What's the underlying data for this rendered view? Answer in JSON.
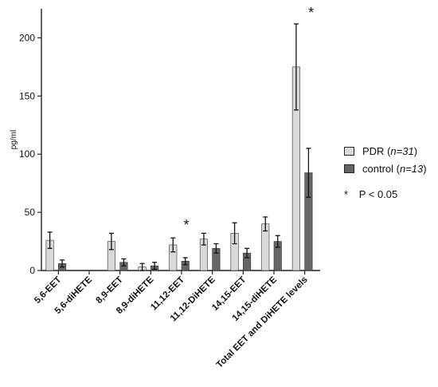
{
  "chart_data": {
    "type": "bar",
    "ylabel": "pg/ml",
    "ylim": [
      0,
      225
    ],
    "yticks": [
      0,
      50,
      100,
      150,
      200
    ],
    "categories": [
      "5,6-EET",
      "5,6-diHETE",
      "8,9-EET",
      "8,9-diHETE",
      "11,12-EET",
      "11,12-DiHETE",
      "14,15-EET",
      "14,15-diHETE",
      "Total EET and DiHETE levels"
    ],
    "series": [
      {
        "name": "PDR (n=31)",
        "name_main": "PDR ",
        "name_n": "n=31",
        "color": "#d9d9d9",
        "values": [
          26,
          0,
          25,
          3,
          22,
          27,
          32,
          40,
          175
        ],
        "errors": [
          7,
          0,
          7,
          3,
          6,
          5,
          9,
          6,
          37
        ]
      },
      {
        "name": "control (n=13)",
        "name_main": "control ",
        "name_n": "n=13",
        "color": "#666666",
        "values": [
          6,
          0,
          7,
          4,
          8,
          19,
          15,
          25,
          84
        ],
        "errors": [
          3,
          0,
          3,
          3,
          3,
          4,
          4,
          5,
          21
        ]
      }
    ],
    "significance": [
      {
        "category_index": 4,
        "label": "*"
      },
      {
        "category_index": 8,
        "label": "*"
      }
    ],
    "annotation": "P < 0.05",
    "annotation_marker": "*",
    "legend_position": "right"
  }
}
